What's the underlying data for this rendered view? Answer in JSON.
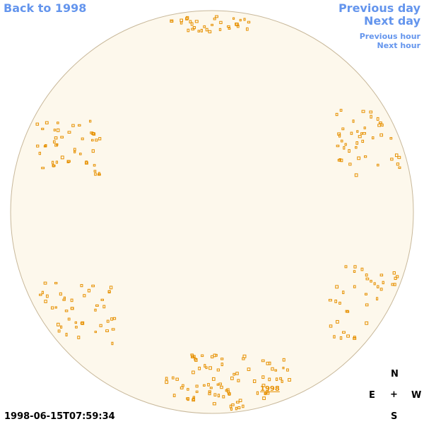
{
  "nav": {
    "back": "Back to 1998",
    "previous_day": "Previous day",
    "next_day": "Next day",
    "previous_hour": "Previous hour",
    "next_hour": "Next hour"
  },
  "image": {
    "year_label": "1998",
    "timestamp": "1998-06-15T07:59:34"
  },
  "compass": {
    "north": "N",
    "east": "E",
    "center": "+",
    "west": "W",
    "south": "S"
  }
}
